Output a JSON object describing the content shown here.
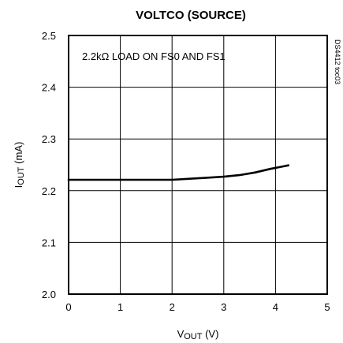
{
  "chart_data": {
    "type": "line",
    "title": "VOLTCO (SOURCE)",
    "annotation": "2.2kΩ LOAD ON FS0 AND FS1",
    "side_label": "DS4412 toc03",
    "xlabel": {
      "main": "V",
      "sub": "OUT",
      "unit": " (V)"
    },
    "ylabel": {
      "main": "I",
      "sub": "OUT",
      "unit": " (mA)"
    },
    "xlim": [
      0,
      5
    ],
    "ylim": [
      2.0,
      2.5
    ],
    "x_ticks": [
      0,
      1,
      2,
      3,
      4,
      5
    ],
    "x_tick_labels": [
      "0",
      "1",
      "2",
      "3",
      "4",
      "5"
    ],
    "y_ticks": [
      2.0,
      2.1,
      2.2,
      2.3,
      2.4,
      2.5
    ],
    "y_tick_labels": [
      "2.0",
      "2.1",
      "2.2",
      "2.3",
      "2.4",
      "2.5"
    ],
    "grid": true,
    "series": [
      {
        "x": [
          0,
          0.5,
          1.0,
          1.5,
          2.0,
          2.5,
          3.0,
          3.3,
          3.6,
          3.9,
          4.1,
          4.25
        ],
        "y": [
          2.221,
          2.221,
          2.221,
          2.221,
          2.221,
          2.224,
          2.227,
          2.23,
          2.235,
          2.242,
          2.246,
          2.249
        ]
      }
    ]
  }
}
